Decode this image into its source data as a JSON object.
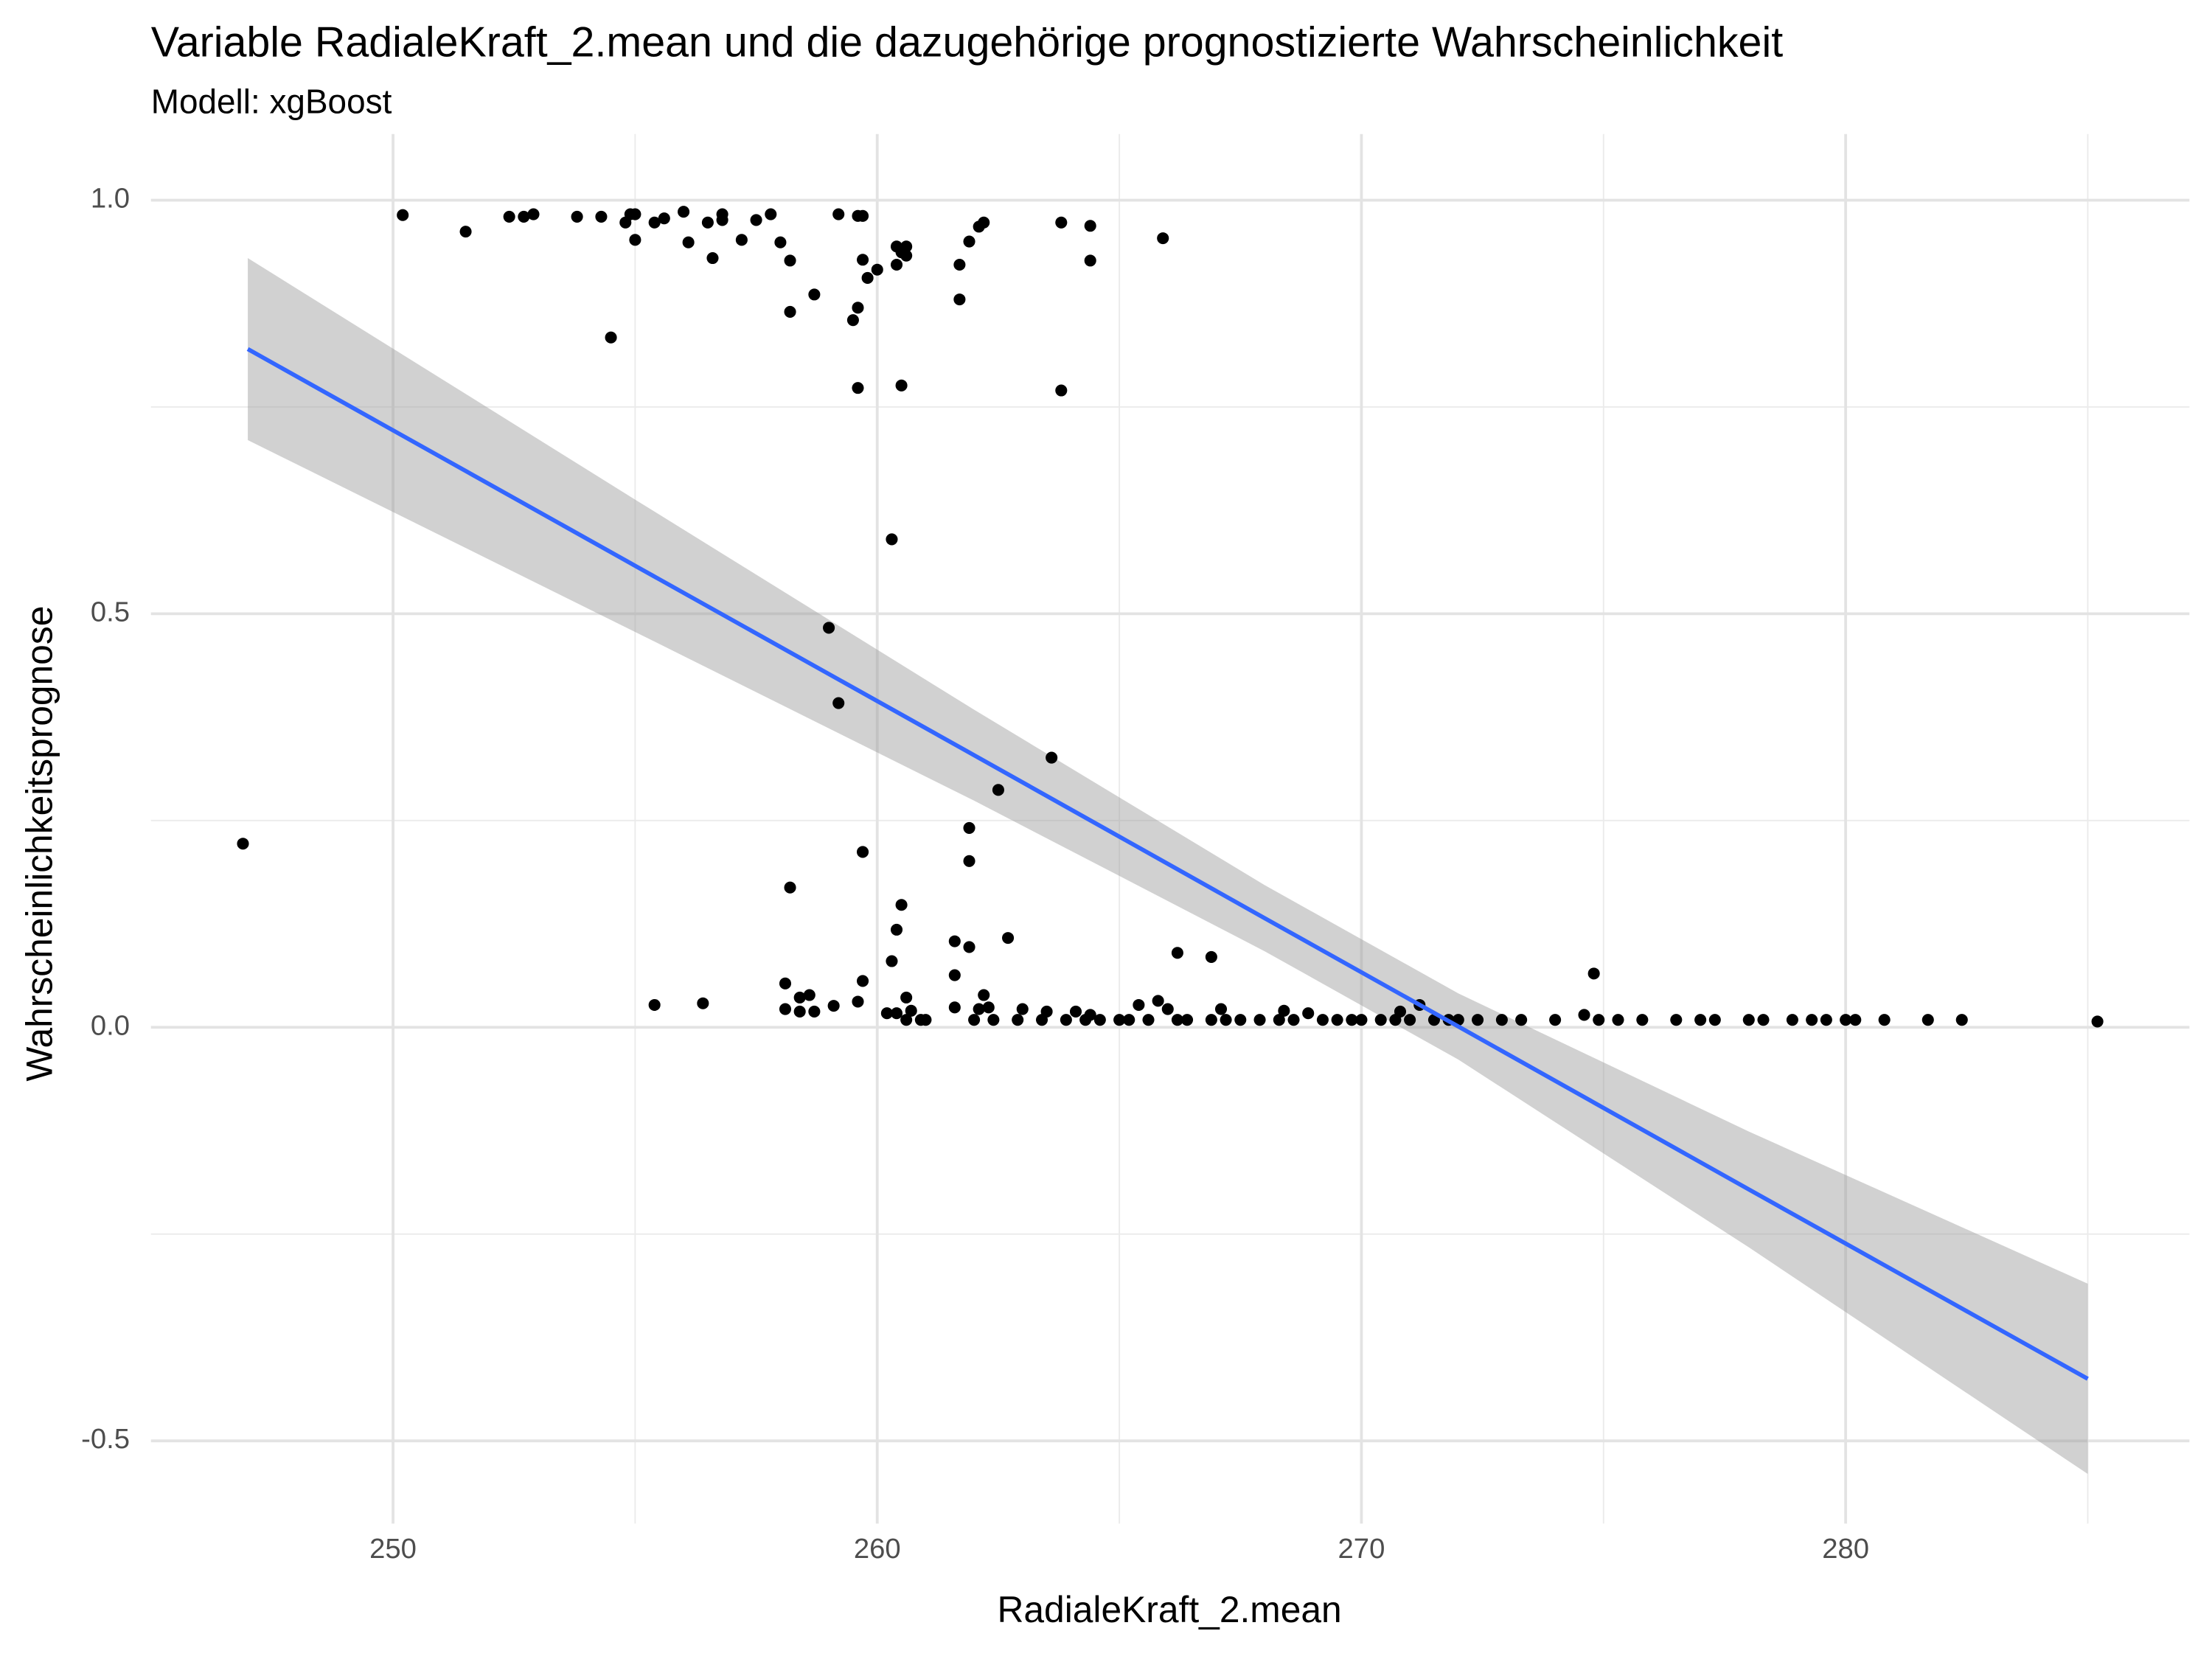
{
  "chart_data": {
    "type": "scatter",
    "title": "Variable RadialeKraft_2.mean und die dazugehörige prognostizierte Wahrscheinlichkeit",
    "subtitle": "Modell: xgBoost",
    "x_label": "RadialeKraft_2.mean",
    "y_label": "Wahrscheinlichkeitsprognose",
    "xlim": [
      245.0,
      287.1
    ],
    "ylim": [
      -0.6,
      1.08
    ],
    "xticks": [
      250,
      260,
      270,
      280
    ],
    "yticks": [
      {
        "value": -0.5,
        "label": "-0.5"
      },
      {
        "value": 0,
        "label": "0.0"
      },
      {
        "value": 0.5,
        "label": "0.5"
      },
      {
        "value": 1,
        "label": "1.0"
      }
    ],
    "x_minor_grid": [
      255,
      265,
      275,
      285
    ],
    "y_minor_grid": [
      -0.25,
      0.25,
      0.75
    ],
    "grid": true,
    "point_color": "#000000",
    "points": {
      "x": [
        250.2,
        251.5,
        252.4,
        252.7,
        252.9,
        253.8,
        254.3,
        254.5,
        254.8,
        254.9,
        255.0,
        255.0,
        255.4,
        255.6,
        256.0,
        256.1,
        256.5,
        256.6,
        256.8,
        256.8,
        257.2,
        257.5,
        257.8,
        258.0,
        258.2,
        258.2,
        258.7,
        259.2,
        259.5,
        259.6,
        259.6,
        259.6,
        259.7,
        259.7,
        259.8,
        260.0,
        260.4,
        260.4,
        260.5,
        260.5,
        260.6,
        260.6,
        261.7,
        261.7,
        261.9,
        262.1,
        262.2,
        263.8,
        263.8,
        264.4,
        264.4,
        265.9,
        260.3,
        259.0,
        259.2,
        263.6,
        262.5,
        246.9,
        261.9,
        259.7,
        261.9,
        258.2,
        260.5,
        260.4,
        261.6,
        262.7,
        261.9,
        260.3,
        266.2,
        266.9,
        274.8,
        261.6,
        259.7,
        258.1,
        255.4,
        256.4,
        258.1,
        258.4,
        258.6,
        258.4,
        258.7,
        259.1,
        259.6,
        260.2,
        260.4,
        260.6,
        260.6,
        260.7,
        260.9,
        261.0,
        261.6,
        262.0,
        262.1,
        262.2,
        262.3,
        262.4,
        262.9,
        263.0,
        263.4,
        263.5,
        263.9,
        264.1,
        264.3,
        264.4,
        264.6,
        265.0,
        265.2,
        265.4,
        265.6,
        265.8,
        266.0,
        266.2,
        266.4,
        266.9,
        267.1,
        267.2,
        267.5,
        267.9,
        268.3,
        268.4,
        268.6,
        268.9,
        269.2,
        269.5,
        269.8,
        270.0,
        270.4,
        270.7,
        270.8,
        271.0,
        271.2,
        271.5,
        271.8,
        272.0,
        272.4,
        272.9,
        273.3,
        274.0,
        274.6,
        274.9,
        275.3,
        275.8,
        276.5,
        277.0,
        277.3,
        278.0,
        278.3,
        278.9,
        279.3,
        279.6,
        280.0,
        280.2,
        280.8,
        281.7,
        282.4,
        285.2
      ],
      "y": [
        0.982,
        0.962,
        0.98,
        0.98,
        0.983,
        0.98,
        0.98,
        0.834,
        0.973,
        0.983,
        0.952,
        0.983,
        0.973,
        0.978,
        0.986,
        0.949,
        0.973,
        0.93,
        0.976,
        0.983,
        0.952,
        0.976,
        0.983,
        0.949,
        0.927,
        0.865,
        0.886,
        0.983,
        0.855,
        0.87,
        0.773,
        0.981,
        0.981,
        0.928,
        0.906,
        0.916,
        0.944,
        0.922,
        0.937,
        0.776,
        0.944,
        0.933,
        0.922,
        0.88,
        0.95,
        0.968,
        0.973,
        0.973,
        0.77,
        0.969,
        0.927,
        0.954,
        0.59,
        0.483,
        0.392,
        0.326,
        0.287,
        0.222,
        0.241,
        0.212,
        0.201,
        0.169,
        0.148,
        0.118,
        0.104,
        0.108,
        0.097,
        0.08,
        0.09,
        0.085,
        0.065,
        0.063,
        0.056,
        0.053,
        0.027,
        0.029,
        0.022,
        0.036,
        0.039,
        0.019,
        0.019,
        0.026,
        0.031,
        0.017,
        0.017,
        0.009,
        0.036,
        0.02,
        0.009,
        0.009,
        0.024,
        0.009,
        0.022,
        0.039,
        0.024,
        0.009,
        0.009,
        0.022,
        0.009,
        0.019,
        0.009,
        0.019,
        0.009,
        0.015,
        0.009,
        0.009,
        0.009,
        0.027,
        0.009,
        0.032,
        0.022,
        0.009,
        0.009,
        0.009,
        0.022,
        0.009,
        0.009,
        0.009,
        0.009,
        0.02,
        0.009,
        0.017,
        0.009,
        0.009,
        0.009,
        0.009,
        0.009,
        0.009,
        0.019,
        0.009,
        0.027,
        0.009,
        0.009,
        0.009,
        0.009,
        0.009,
        0.009,
        0.009,
        0.015,
        0.009,
        0.009,
        0.009,
        0.009,
        0.009,
        0.009,
        0.009,
        0.009,
        0.009,
        0.009,
        0.009,
        0.009,
        0.009,
        0.009,
        0.009,
        0.009,
        0.007
      ]
    },
    "fit": {
      "color": "#3366ff",
      "band_color": "#999999",
      "x": [
        247,
        255,
        262,
        268,
        272,
        278,
        285
      ],
      "y": [
        0.82,
        0.558,
        0.329,
        0.132,
        0.001,
        -0.196,
        -0.425
      ],
      "lower": [
        0.71,
        0.478,
        0.274,
        0.092,
        -0.039,
        -0.266,
        -0.54
      ],
      "upper": [
        0.93,
        0.638,
        0.384,
        0.172,
        0.041,
        -0.126,
        -0.31
      ]
    }
  }
}
